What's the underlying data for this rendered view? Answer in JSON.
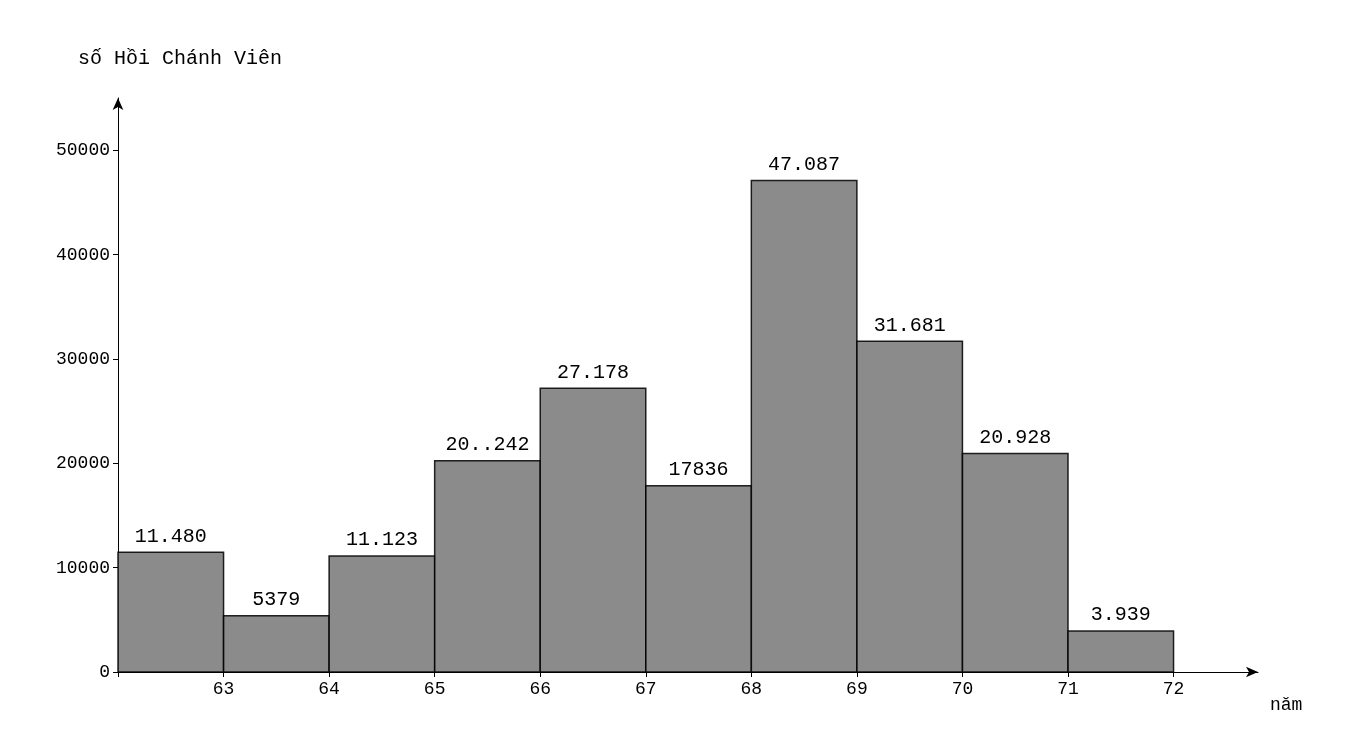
{
  "chart_data": {
    "type": "histogram",
    "ylabel": "số Hồi Chánh Viên",
    "xlabel": "năm",
    "bins": [
      62,
      63,
      64,
      65,
      66,
      67,
      68,
      69,
      70,
      71,
      72
    ],
    "values": [
      11480,
      5379,
      11123,
      20242,
      27178,
      17836,
      47087,
      31681,
      20928,
      3939
    ],
    "value_labels": [
      "11.480",
      "5379",
      "11.123",
      "20..242",
      "27.178",
      "17836",
      "47.087",
      "31.681",
      "20.928",
      "3.939"
    ],
    "color": "#777777",
    "xlim": [
      62,
      72.8
    ],
    "xticks": [
      {
        "value": 62,
        "label": null
      },
      63,
      64,
      65,
      66,
      67,
      68,
      69,
      70,
      71,
      72
    ],
    "ylim": [
      0,
      55000
    ],
    "yticks": [
      0,
      10000,
      20000,
      30000,
      40000,
      50000
    ],
    "grid": false
  }
}
